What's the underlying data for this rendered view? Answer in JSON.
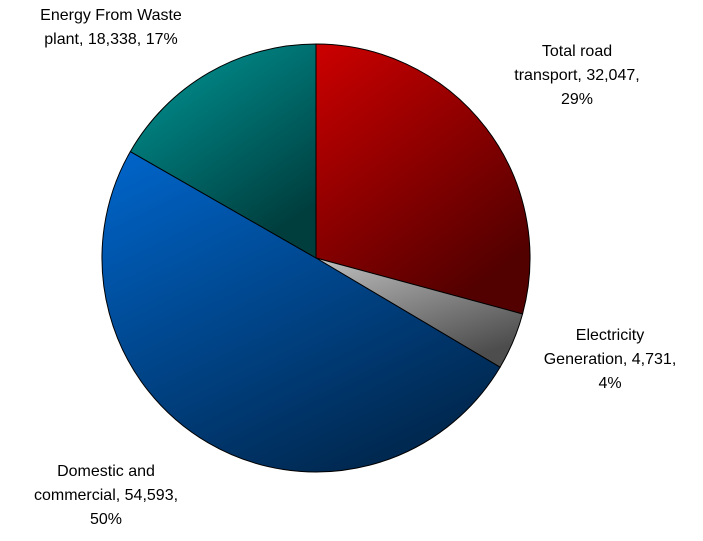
{
  "chart_data": {
    "type": "pie",
    "categories": [
      "Total road transport",
      "Electricity Generation",
      "Domestic and commercial",
      "Energy From Waste plant"
    ],
    "values": [
      32047,
      4731,
      54593,
      18338
    ],
    "colors": [
      "#cc0000",
      "#c0c0c0",
      "#0066cc",
      "#009999"
    ],
    "data_labels": [
      "Total road transport, 32,047, 29%",
      "Electricity Generation, 4,731, 4%",
      "Domestic and commercial, 54,593, 50%",
      "Energy From Waste plant, 18,338, 17%"
    ],
    "percentages": [
      29,
      4,
      50,
      17
    ]
  }
}
